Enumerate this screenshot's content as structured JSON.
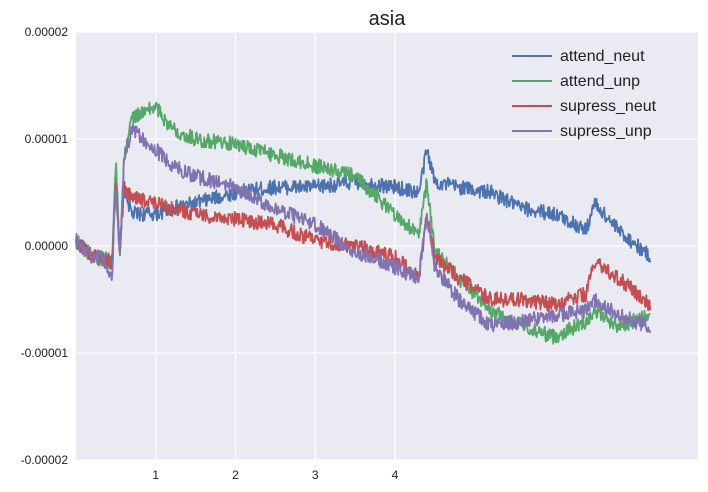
{
  "chart_data": {
    "type": "line",
    "title": "asia",
    "xlabel": "",
    "ylabel": "",
    "xlim": [
      0,
      7.8
    ],
    "ylim": [
      -2e-05,
      2e-05
    ],
    "x_ticks": [
      1,
      2,
      3,
      4
    ],
    "x_tick_labels": [
      "1",
      "2",
      "3",
      "4"
    ],
    "y_ticks": [
      -2e-05,
      -1e-05,
      0,
      1e-05,
      2e-05
    ],
    "y_tick_labels": [
      "-0.00002",
      "-0.00001",
      "0.00000",
      "0.00001",
      "0.00002"
    ],
    "grid": true,
    "legend_position": "top-right",
    "colors": {
      "background": "#eaeaf2",
      "grid": "#ffffff"
    },
    "x": [
      0,
      0.2,
      0.35,
      0.45,
      0.5,
      0.55,
      0.6,
      0.7,
      1.0,
      1.2,
      1.5,
      2.0,
      2.5,
      3.0,
      3.5,
      4.0,
      4.3,
      4.4,
      4.5,
      4.8,
      5.2,
      5.6,
      6.0,
      6.4,
      6.5,
      6.8,
      7.2
    ],
    "series": [
      {
        "name": "attend_neut",
        "color": "#4c72b0",
        "values": [
          5e-07,
          -1e-06,
          -1.2e-06,
          -1.5e-06,
          6e-06,
          -1e-06,
          5.5e-06,
          3e-06,
          3e-06,
          3.5e-06,
          4e-06,
          5e-06,
          5.5e-06,
          5.5e-06,
          6e-06,
          5.5e-06,
          5e-06,
          9e-06,
          6e-06,
          5.5e-06,
          5e-06,
          3.5e-06,
          3e-06,
          1.5e-06,
          4e-06,
          1.5e-06,
          -1e-06
        ]
      },
      {
        "name": "attend_unp",
        "color": "#55a868",
        "values": [
          5e-07,
          -1e-06,
          -1.2e-06,
          -1.5e-06,
          8e-06,
          -1e-06,
          8e-06,
          1.2e-05,
          1.3e-05,
          1.1e-05,
          1e-05,
          9.5e-06,
          8.5e-06,
          7.5e-06,
          6.5e-06,
          3e-06,
          1e-06,
          6e-06,
          -5e-07,
          -3e-06,
          -6e-06,
          -7.5e-06,
          -8.5e-06,
          -7e-06,
          -6e-06,
          -7.5e-06,
          -6.5e-06
        ]
      },
      {
        "name": "supress_neut",
        "color": "#c44e52",
        "values": [
          5e-07,
          -1e-06,
          -1.2e-06,
          -1.5e-06,
          6e-06,
          -1e-06,
          5.5e-06,
          4.5e-06,
          4e-06,
          3.5e-06,
          3e-06,
          2.5e-06,
          2e-06,
          5e-07,
          0.0,
          -1e-06,
          -3e-06,
          3e-06,
          -1e-06,
          -3e-06,
          -5e-06,
          -5e-06,
          -5.5e-06,
          -4.5e-06,
          -1.5e-06,
          -3e-06,
          -5.5e-06
        ]
      },
      {
        "name": "supress_unp",
        "color": "#8172b2",
        "values": [
          5e-07,
          -1e-06,
          -1.2e-06,
          -3e-06,
          6e-06,
          -1e-06,
          8e-06,
          1.1e-05,
          9e-06,
          7.5e-06,
          6.5e-06,
          5.5e-06,
          3.5e-06,
          2e-06,
          -5e-07,
          -2e-06,
          -3e-06,
          3e-06,
          -2e-06,
          -5e-06,
          -7.5e-06,
          -7e-06,
          -6.5e-06,
          -6e-06,
          -5e-06,
          -6.5e-06,
          -7.5e-06
        ]
      }
    ]
  }
}
